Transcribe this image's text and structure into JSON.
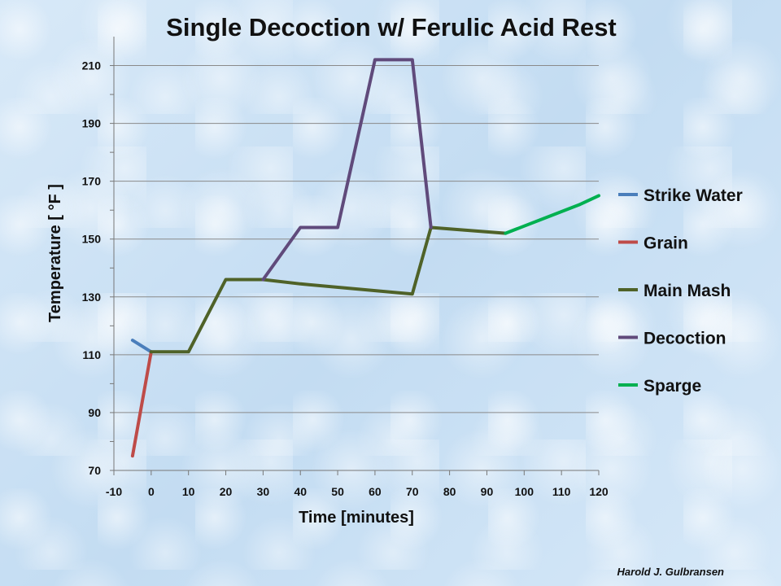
{
  "credit": "Harold J. Gulbransen",
  "chart_data": {
    "type": "line",
    "title": "Single Decoction w/ Ferulic Acid Rest",
    "xlabel": "Time [minutes]",
    "ylabel": "Temperature  [ °F ]",
    "xlim": [
      -10,
      120
    ],
    "ylim": [
      70,
      220
    ],
    "xticks": [
      -10,
      0,
      10,
      20,
      30,
      40,
      50,
      60,
      70,
      80,
      90,
      100,
      110,
      120
    ],
    "yticks": [
      70,
      90,
      110,
      130,
      150,
      170,
      190,
      210
    ],
    "grid": true,
    "legend_position": "right",
    "series": [
      {
        "name": "Strike Water",
        "color": "#4a7ebb",
        "points": [
          [
            -5,
            115
          ],
          [
            0,
            111
          ]
        ]
      },
      {
        "name": "Grain",
        "color": "#be4b48",
        "points": [
          [
            -5,
            75
          ],
          [
            0,
            111
          ]
        ]
      },
      {
        "name": "Main Mash",
        "color": "#4f6228",
        "points": [
          [
            0,
            111
          ],
          [
            10,
            111
          ],
          [
            20,
            136
          ],
          [
            30,
            136
          ],
          [
            40,
            134.5
          ],
          [
            70,
            131
          ],
          [
            75,
            154
          ],
          [
            95,
            152
          ]
        ]
      },
      {
        "name": "Decoction",
        "color": "#604a7b",
        "points": [
          [
            30,
            136
          ],
          [
            40,
            154
          ],
          [
            50,
            154
          ],
          [
            60,
            212
          ],
          [
            70,
            212
          ],
          [
            75,
            154
          ]
        ]
      },
      {
        "name": "Sparge",
        "color": "#00b050",
        "points": [
          [
            95,
            152
          ],
          [
            115,
            162
          ],
          [
            120,
            165
          ]
        ]
      }
    ]
  }
}
